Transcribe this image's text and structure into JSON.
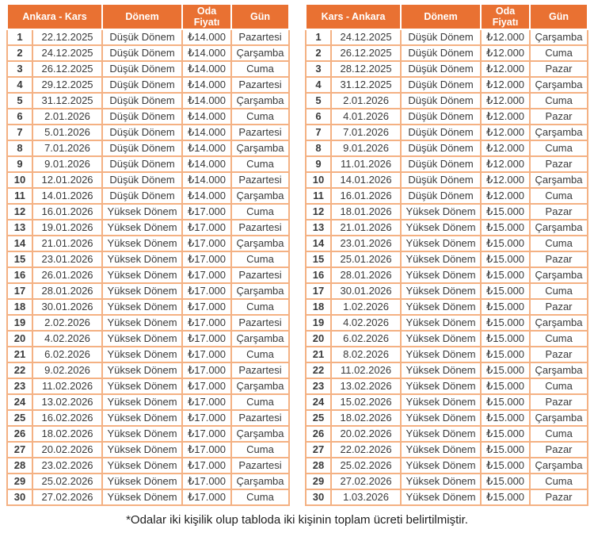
{
  "colors": {
    "header_bg": "#E97132",
    "header_text": "#FFFFFF",
    "cell_border": "#F4B183",
    "cell_text": "#3A3A3A"
  },
  "footnote": "*Odalar iki kişilik olup tabloda iki kişinin toplam ücreti belirtilmiştir.",
  "tables": [
    {
      "route_header": "Ankara - Kars",
      "columns": [
        "Dönem",
        "Oda Fiyatı",
        "Gün"
      ],
      "rows": [
        [
          "1",
          "22.12.2025",
          "Düşük Dönem",
          "₺14.000",
          "Pazartesi"
        ],
        [
          "2",
          "24.12.2025",
          "Düşük Dönem",
          "₺14.000",
          "Çarşamba"
        ],
        [
          "3",
          "26.12.2025",
          "Düşük Dönem",
          "₺14.000",
          "Cuma"
        ],
        [
          "4",
          "29.12.2025",
          "Düşük Dönem",
          "₺14.000",
          "Pazartesi"
        ],
        [
          "5",
          "31.12.2025",
          "Düşük Dönem",
          "₺14.000",
          "Çarşamba"
        ],
        [
          "6",
          "2.01.2026",
          "Düşük Dönem",
          "₺14.000",
          "Cuma"
        ],
        [
          "7",
          "5.01.2026",
          "Düşük Dönem",
          "₺14.000",
          "Pazartesi"
        ],
        [
          "8",
          "7.01.2026",
          "Düşük Dönem",
          "₺14.000",
          "Çarşamba"
        ],
        [
          "9",
          "9.01.2026",
          "Düşük Dönem",
          "₺14.000",
          "Cuma"
        ],
        [
          "10",
          "12.01.2026",
          "Düşük Dönem",
          "₺14.000",
          "Pazartesi"
        ],
        [
          "11",
          "14.01.2026",
          "Düşük Dönem",
          "₺14.000",
          "Çarşamba"
        ],
        [
          "12",
          "16.01.2026",
          "Yüksek Dönem",
          "₺17.000",
          "Cuma"
        ],
        [
          "13",
          "19.01.2026",
          "Yüksek Dönem",
          "₺17.000",
          "Pazartesi"
        ],
        [
          "14",
          "21.01.2026",
          "Yüksek Dönem",
          "₺17.000",
          "Çarşamba"
        ],
        [
          "15",
          "23.01.2026",
          "Yüksek Dönem",
          "₺17.000",
          "Cuma"
        ],
        [
          "16",
          "26.01.2026",
          "Yüksek Dönem",
          "₺17.000",
          "Pazartesi"
        ],
        [
          "17",
          "28.01.2026",
          "Yüksek Dönem",
          "₺17.000",
          "Çarşamba"
        ],
        [
          "18",
          "30.01.2026",
          "Yüksek Dönem",
          "₺17.000",
          "Cuma"
        ],
        [
          "19",
          "2.02.2026",
          "Yüksek Dönem",
          "₺17.000",
          "Pazartesi"
        ],
        [
          "20",
          "4.02.2026",
          "Yüksek Dönem",
          "₺17.000",
          "Çarşamba"
        ],
        [
          "21",
          "6.02.2026",
          "Yüksek Dönem",
          "₺17.000",
          "Cuma"
        ],
        [
          "22",
          "9.02.2026",
          "Yüksek Dönem",
          "₺17.000",
          "Pazartesi"
        ],
        [
          "23",
          "11.02.2026",
          "Yüksek Dönem",
          "₺17.000",
          "Çarşamba"
        ],
        [
          "24",
          "13.02.2026",
          "Yüksek Dönem",
          "₺17.000",
          "Cuma"
        ],
        [
          "25",
          "16.02.2026",
          "Yüksek Dönem",
          "₺17.000",
          "Pazartesi"
        ],
        [
          "26",
          "18.02.2026",
          "Yüksek Dönem",
          "₺17.000",
          "Çarşamba"
        ],
        [
          "27",
          "20.02.2026",
          "Yüksek Dönem",
          "₺17.000",
          "Cuma"
        ],
        [
          "28",
          "23.02.2026",
          "Yüksek Dönem",
          "₺17.000",
          "Pazartesi"
        ],
        [
          "29",
          "25.02.2026",
          "Yüksek Dönem",
          "₺17.000",
          "Çarşamba"
        ],
        [
          "30",
          "27.02.2026",
          "Yüksek Dönem",
          "₺17.000",
          "Cuma"
        ]
      ]
    },
    {
      "route_header": "Kars - Ankara",
      "columns": [
        "Dönem",
        "Oda Fiyatı",
        "Gün"
      ],
      "rows": [
        [
          "1",
          "24.12.2025",
          "Düşük Dönem",
          "₺12.000",
          "Çarşamba"
        ],
        [
          "2",
          "26.12.2025",
          "Düşük Dönem",
          "₺12.000",
          "Cuma"
        ],
        [
          "3",
          "28.12.2025",
          "Düşük Dönem",
          "₺12.000",
          "Pazar"
        ],
        [
          "4",
          "31.12.2025",
          "Düşük Dönem",
          "₺12.000",
          "Çarşamba"
        ],
        [
          "5",
          "2.01.2026",
          "Düşük Dönem",
          "₺12.000",
          "Cuma"
        ],
        [
          "6",
          "4.01.2026",
          "Düşük Dönem",
          "₺12.000",
          "Pazar"
        ],
        [
          "7",
          "7.01.2026",
          "Düşük Dönem",
          "₺12.000",
          "Çarşamba"
        ],
        [
          "8",
          "9.01.2026",
          "Düşük Dönem",
          "₺12.000",
          "Cuma"
        ],
        [
          "9",
          "11.01.2026",
          "Düşük Dönem",
          "₺12.000",
          "Pazar"
        ],
        [
          "10",
          "14.01.2026",
          "Düşük Dönem",
          "₺12.000",
          "Çarşamba"
        ],
        [
          "11",
          "16.01.2026",
          "Düşük Dönem",
          "₺12.000",
          "Cuma"
        ],
        [
          "12",
          "18.01.2026",
          "Yüksek Dönem",
          "₺15.000",
          "Pazar"
        ],
        [
          "13",
          "21.01.2026",
          "Yüksek Dönem",
          "₺15.000",
          "Çarşamba"
        ],
        [
          "14",
          "23.01.2026",
          "Yüksek Dönem",
          "₺15.000",
          "Cuma"
        ],
        [
          "15",
          "25.01.2026",
          "Yüksek Dönem",
          "₺15.000",
          "Pazar"
        ],
        [
          "16",
          "28.01.2026",
          "Yüksek Dönem",
          "₺15.000",
          "Çarşamba"
        ],
        [
          "17",
          "30.01.2026",
          "Yüksek Dönem",
          "₺15.000",
          "Cuma"
        ],
        [
          "18",
          "1.02.2026",
          "Yüksek Dönem",
          "₺15.000",
          "Pazar"
        ],
        [
          "19",
          "4.02.2026",
          "Yüksek Dönem",
          "₺15.000",
          "Çarşamba"
        ],
        [
          "20",
          "6.02.2026",
          "Yüksek Dönem",
          "₺15.000",
          "Cuma"
        ],
        [
          "21",
          "8.02.2026",
          "Yüksek Dönem",
          "₺15.000",
          "Pazar"
        ],
        [
          "22",
          "11.02.2026",
          "Yüksek Dönem",
          "₺15.000",
          "Çarşamba"
        ],
        [
          "23",
          "13.02.2026",
          "Yüksek Dönem",
          "₺15.000",
          "Cuma"
        ],
        [
          "24",
          "15.02.2026",
          "Yüksek Dönem",
          "₺15.000",
          "Pazar"
        ],
        [
          "25",
          "18.02.2026",
          "Yüksek Dönem",
          "₺15.000",
          "Çarşamba"
        ],
        [
          "26",
          "20.02.2026",
          "Yüksek Dönem",
          "₺15.000",
          "Cuma"
        ],
        [
          "27",
          "22.02.2026",
          "Yüksek Dönem",
          "₺15.000",
          "Pazar"
        ],
        [
          "28",
          "25.02.2026",
          "Yüksek Dönem",
          "₺15.000",
          "Çarşamba"
        ],
        [
          "29",
          "27.02.2026",
          "Yüksek Dönem",
          "₺15.000",
          "Cuma"
        ],
        [
          "30",
          "1.03.2026",
          "Yüksek Dönem",
          "₺15.000",
          "Pazar"
        ]
      ]
    }
  ]
}
